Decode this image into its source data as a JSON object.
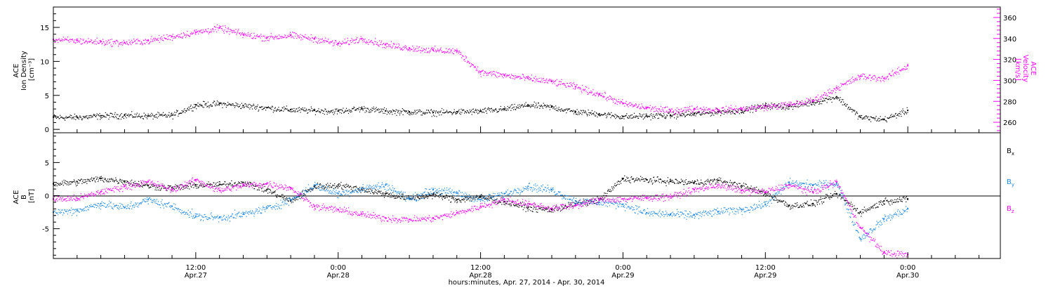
{
  "colors": {
    "bx": "#000000",
    "by": "#1e88e5",
    "bz": "#ff00ff",
    "density": "#000000",
    "velocity": "#ff00ff",
    "zero_line": "#000000",
    "frame": "#000000"
  },
  "x_axis": {
    "label": "hours:minutes, Apr. 27, 2014 - Apr. 30, 2014",
    "major_ticks": [
      {
        "time": "12:00",
        "date": "Apr.27",
        "hour": 12
      },
      {
        "time": "0:00",
        "date": "Apr.28",
        "hour": 24
      },
      {
        "time": "12:00",
        "date": "Apr.28",
        "hour": 36
      },
      {
        "time": "0:00",
        "date": "Apr.29",
        "hour": 48
      },
      {
        "time": "12:00",
        "date": "Apr.29",
        "hour": 60
      },
      {
        "time": "0:00",
        "date": "Apr.30",
        "hour": 72
      }
    ],
    "minor_tick_step_hours": 2,
    "range_hours": [
      0,
      79.8
    ],
    "data_end_hour": 72
  },
  "chart_data": [
    {
      "type": "scatter",
      "panel": "top",
      "y_left": {
        "label_lines": [
          "ACE",
          "Ion Density",
          "[cm⁻³]"
        ],
        "ticks": [
          "0",
          "5",
          "10",
          "15"
        ],
        "tick_values": [
          0,
          5,
          10,
          15
        ],
        "ylim": [
          -0.5,
          18
        ]
      },
      "y_right": {
        "label_lines": [
          "ACE",
          "Velocity",
          "[km/s]"
        ],
        "ticks": [
          "260",
          "280",
          "300",
          "320",
          "340",
          "360"
        ],
        "tick_values": [
          260,
          280,
          300,
          320,
          340,
          360
        ],
        "ylim": [
          250,
          370
        ]
      },
      "series": [
        {
          "key": "density",
          "axis": "left",
          "x": [
            0,
            2,
            4,
            6,
            8,
            10,
            12,
            14,
            16,
            18,
            20,
            22,
            24,
            26,
            28,
            30,
            32,
            34,
            36,
            38,
            40,
            42,
            44,
            46,
            48,
            50,
            52,
            54,
            56,
            58,
            60,
            62,
            64,
            66,
            68,
            70,
            72
          ],
          "values": [
            1.8,
            1.8,
            2.0,
            2.1,
            2.0,
            2.1,
            3.6,
            3.8,
            3.5,
            3.2,
            2.9,
            2.8,
            2.7,
            3.1,
            2.7,
            2.6,
            2.5,
            2.6,
            2.7,
            3.0,
            3.6,
            3.3,
            2.6,
            2.3,
            1.9,
            2.0,
            2.1,
            2.3,
            2.6,
            2.8,
            3.5,
            3.4,
            4.0,
            4.8,
            1.8,
            1.5,
            2.8
          ]
        },
        {
          "key": "velocity",
          "axis": "right",
          "x": [
            0,
            2,
            4,
            6,
            8,
            10,
            12,
            14,
            16,
            18,
            20,
            22,
            24,
            26,
            28,
            30,
            32,
            34,
            36,
            38,
            40,
            42,
            44,
            46,
            48,
            50,
            52,
            54,
            56,
            58,
            60,
            62,
            64,
            66,
            68,
            70,
            72
          ],
          "values": [
            339,
            338,
            337,
            336,
            338,
            342,
            346,
            350,
            344,
            341,
            343,
            340,
            335,
            340,
            334,
            331,
            329,
            328,
            308,
            305,
            302,
            299,
            294,
            287,
            278,
            274,
            271,
            273,
            272,
            273,
            275,
            277,
            281,
            293,
            304,
            302,
            314
          ]
        }
      ]
    },
    {
      "type": "scatter",
      "panel": "bottom",
      "y_left": {
        "label_lines": [
          "ACE",
          "B",
          "[nT]"
        ],
        "ticks": [
          "-5",
          "0",
          "5"
        ],
        "tick_values": [
          -5,
          0,
          5
        ],
        "ylim": [
          -9.5,
          9.5
        ]
      },
      "legend": {
        "placement": "right"
      },
      "series": [
        {
          "key": "bx",
          "name": "Bx",
          "name_base": "B",
          "name_sub": "x",
          "x": [
            0,
            2,
            4,
            6,
            8,
            10,
            12,
            14,
            16,
            18,
            20,
            22,
            24,
            26,
            28,
            30,
            32,
            34,
            36,
            38,
            40,
            42,
            44,
            46,
            48,
            50,
            52,
            54,
            56,
            58,
            60,
            62,
            64,
            66,
            68,
            70,
            72
          ],
          "values": [
            1.8,
            2.1,
            2.6,
            2.2,
            1.5,
            1.2,
            1.6,
            1.7,
            2.0,
            0.9,
            -0.8,
            1.4,
            1.6,
            1.0,
            0.3,
            -0.4,
            0.2,
            -0.6,
            -0.2,
            -0.9,
            -1.8,
            -2.1,
            -1.2,
            -0.6,
            2.6,
            2.4,
            2.2,
            2.0,
            2.3,
            1.5,
            0.4,
            -1.5,
            -1.2,
            0.3,
            -2.5,
            -0.8,
            -0.5
          ]
        },
        {
          "key": "by",
          "name": "By",
          "name_base": "B",
          "name_sub": "y",
          "x": [
            0,
            2,
            4,
            6,
            8,
            10,
            12,
            14,
            16,
            18,
            20,
            22,
            24,
            26,
            28,
            30,
            32,
            34,
            36,
            38,
            40,
            42,
            44,
            46,
            48,
            50,
            52,
            54,
            56,
            58,
            60,
            62,
            64,
            66,
            68,
            70,
            72
          ],
          "values": [
            -2.5,
            -2.2,
            -1.2,
            -1.8,
            -0.6,
            -1.6,
            -3.1,
            -3.3,
            -2.8,
            -1.9,
            -0.6,
            1.6,
            0.3,
            1.1,
            1.6,
            -0.5,
            0.9,
            0.4,
            -0.6,
            0.3,
            1.4,
            0.9,
            -0.8,
            -1.0,
            -1.3,
            -2.6,
            -2.8,
            -2.9,
            -2.4,
            -2.1,
            -1.3,
            2.0,
            1.6,
            1.9,
            -6.5,
            -3.5,
            -2.0
          ]
        },
        {
          "key": "bz",
          "name": "Bz",
          "name_base": "B",
          "name_sub": "z",
          "x": [
            0,
            2,
            4,
            6,
            8,
            10,
            12,
            14,
            16,
            18,
            20,
            22,
            24,
            26,
            28,
            30,
            32,
            34,
            36,
            38,
            40,
            42,
            44,
            46,
            48,
            50,
            52,
            54,
            56,
            58,
            60,
            62,
            64,
            66,
            68,
            70,
            72
          ],
          "values": [
            -0.5,
            -0.4,
            0.6,
            1.4,
            2.1,
            0.9,
            2.4,
            0.8,
            1.6,
            1.8,
            1.2,
            -1.6,
            -2.1,
            -2.8,
            -3.4,
            -3.6,
            -3.4,
            -2.6,
            -1.6,
            -0.6,
            -1.2,
            -1.9,
            -1.4,
            -0.6,
            -0.5,
            -0.3,
            -0.1,
            0.9,
            1.6,
            0.8,
            0.6,
            1.6,
            0.6,
            2.1,
            -4.8,
            -8.6,
            -8.9
          ]
        }
      ]
    }
  ]
}
